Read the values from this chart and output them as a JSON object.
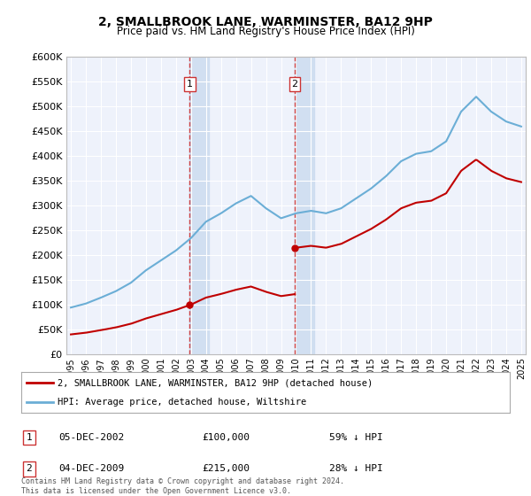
{
  "title": "2, SMALLBROOK LANE, WARMINSTER, BA12 9HP",
  "subtitle": "Price paid vs. HM Land Registry's House Price Index (HPI)",
  "years": [
    1995,
    1996,
    1997,
    1998,
    1999,
    2000,
    2001,
    2002,
    2003,
    2004,
    2005,
    2006,
    2007,
    2008,
    2009,
    2010,
    2011,
    2012,
    2013,
    2014,
    2015,
    2016,
    2017,
    2018,
    2019,
    2020,
    2021,
    2022,
    2023,
    2024,
    2025
  ],
  "hpi_values": [
    95000,
    103000,
    115000,
    128000,
    145000,
    170000,
    190000,
    210000,
    235000,
    268000,
    285000,
    305000,
    320000,
    295000,
    275000,
    285000,
    290000,
    285000,
    295000,
    315000,
    335000,
    360000,
    390000,
    405000,
    410000,
    430000,
    490000,
    520000,
    490000,
    470000,
    460000
  ],
  "sale1_year": 2002.92,
  "sale1_price": 100000,
  "sale2_year": 2009.92,
  "sale2_price": 215000,
  "ylim": [
    0,
    600000
  ],
  "yticks": [
    0,
    50000,
    100000,
    150000,
    200000,
    250000,
    300000,
    350000,
    400000,
    450000,
    500000,
    550000,
    600000
  ],
  "background_color": "#ffffff",
  "plot_bg_color": "#eef2fb",
  "hpi_line_color": "#6baed6",
  "sale_line_color": "#c00000",
  "vline_color": "#cc3333",
  "shade_color": "#ccdcf0",
  "legend_label_sale": "2, SMALLBROOK LANE, WARMINSTER, BA12 9HP (detached house)",
  "legend_label_hpi": "HPI: Average price, detached house, Wiltshire",
  "note1_label": "1",
  "note1_date": "05-DEC-2002",
  "note1_price": "£100,000",
  "note1_pct": "59% ↓ HPI",
  "note2_label": "2",
  "note2_date": "04-DEC-2009",
  "note2_price": "£215,000",
  "note2_pct": "28% ↓ HPI",
  "footer": "Contains HM Land Registry data © Crown copyright and database right 2024.\nThis data is licensed under the Open Government Licence v3.0."
}
